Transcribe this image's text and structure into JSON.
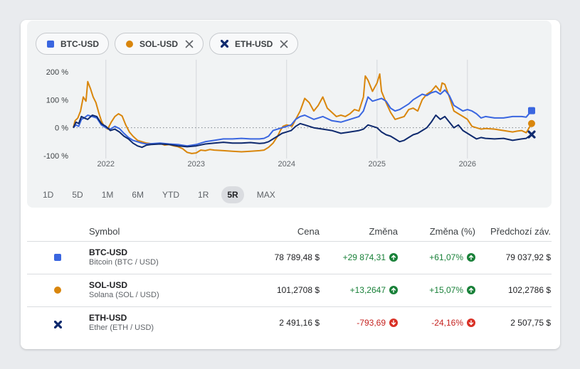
{
  "colors": {
    "btc": "#3a66e0",
    "sol": "#d9860c",
    "eth": "#0f2a6e",
    "positive": "#188038",
    "negative": "#c5221f"
  },
  "chips": [
    {
      "label": "BTC-USD",
      "icon": "square",
      "closable": false
    },
    {
      "label": "SOL-USD",
      "icon": "circle",
      "closable": true
    },
    {
      "label": "ETH-USD",
      "icon": "x-mark",
      "closable": true
    }
  ],
  "ranges": [
    "1D",
    "5D",
    "1M",
    "6M",
    "YTD",
    "1R",
    "5R",
    "MAX"
  ],
  "active_range": "5R",
  "table": {
    "headers": {
      "symbol": "Symbol",
      "price": "Cena",
      "change": "Změna",
      "change_pct": "Změna (%)",
      "prev_close": "Předchozí záv."
    },
    "rows": [
      {
        "symbol": "BTC-USD",
        "name": "Bitcoin (BTC / USD)",
        "price": "78 789,48 $",
        "change": "+29 874,31",
        "change_pct": "+61,07%",
        "prev_close": "79 037,92 $",
        "direction": "up"
      },
      {
        "symbol": "SOL-USD",
        "name": "Solana (SOL / USD)",
        "price": "101,2708 $",
        "change": "+13,2647",
        "change_pct": "+15,07%",
        "prev_close": "102,2786 $",
        "direction": "up"
      },
      {
        "symbol": "ETH-USD",
        "name": "Ether (ETH / USD)",
        "price": "2 491,16 $",
        "change": "-793,69",
        "change_pct": "-24,16%",
        "prev_close": "2 507,75 $",
        "direction": "down"
      }
    ]
  },
  "chart_data": {
    "type": "line",
    "ylim": [
      -100,
      200
    ],
    "yticks": [
      -100,
      0,
      100,
      200
    ],
    "ytick_labels": [
      "-100 %",
      "0 %",
      "100 %",
      "200 %"
    ],
    "xlim": [
      2021.64,
      2026.71
    ],
    "xticks": [
      2022,
      2023,
      2024,
      2025,
      2026
    ],
    "xtick_labels": [
      "2022",
      "2023",
      "2024",
      "2025",
      "2026"
    ],
    "xlabel": "",
    "ylabel": "",
    "grid": "vertical",
    "baseline": 0,
    "series": [
      {
        "name": "SOL-USD",
        "key": "sol",
        "marker": "circle",
        "points": [
          [
            2021.64,
            0
          ],
          [
            2021.66,
            25
          ],
          [
            2021.69,
            35
          ],
          [
            2021.72,
            60
          ],
          [
            2021.75,
            110
          ],
          [
            2021.78,
            95
          ],
          [
            2021.8,
            165
          ],
          [
            2021.83,
            140
          ],
          [
            2021.86,
            110
          ],
          [
            2021.89,
            90
          ],
          [
            2021.92,
            55
          ],
          [
            2021.95,
            25
          ],
          [
            2021.98,
            5
          ],
          [
            2022.02,
            -5
          ],
          [
            2022.06,
            20
          ],
          [
            2022.1,
            40
          ],
          [
            2022.14,
            50
          ],
          [
            2022.18,
            42
          ],
          [
            2022.22,
            10
          ],
          [
            2022.26,
            -15
          ],
          [
            2022.3,
            -30
          ],
          [
            2022.35,
            -45
          ],
          [
            2022.4,
            -50
          ],
          [
            2022.45,
            -55
          ],
          [
            2022.5,
            -57
          ],
          [
            2022.55,
            -58
          ],
          [
            2022.6,
            -56
          ],
          [
            2022.65,
            -62
          ],
          [
            2022.7,
            -60
          ],
          [
            2022.75,
            -65
          ],
          [
            2022.8,
            -68
          ],
          [
            2022.85,
            -75
          ],
          [
            2022.9,
            -88
          ],
          [
            2022.95,
            -92
          ],
          [
            2023.0,
            -90
          ],
          [
            2023.05,
            -80
          ],
          [
            2023.1,
            -82
          ],
          [
            2023.15,
            -78
          ],
          [
            2023.2,
            -80
          ],
          [
            2023.3,
            -82
          ],
          [
            2023.4,
            -84
          ],
          [
            2023.5,
            -86
          ],
          [
            2023.6,
            -84
          ],
          [
            2023.7,
            -82
          ],
          [
            2023.75,
            -80
          ],
          [
            2023.8,
            -70
          ],
          [
            2023.85,
            -55
          ],
          [
            2023.9,
            -30
          ],
          [
            2023.93,
            -10
          ],
          [
            2023.96,
            5
          ],
          [
            2024.0,
            10
          ],
          [
            2024.03,
            8
          ],
          [
            2024.06,
            5
          ],
          [
            2024.1,
            30
          ],
          [
            2024.15,
            60
          ],
          [
            2024.2,
            105
          ],
          [
            2024.25,
            90
          ],
          [
            2024.3,
            60
          ],
          [
            2024.35,
            80
          ],
          [
            2024.4,
            110
          ],
          [
            2024.45,
            70
          ],
          [
            2024.5,
            55
          ],
          [
            2024.55,
            40
          ],
          [
            2024.6,
            45
          ],
          [
            2024.65,
            40
          ],
          [
            2024.7,
            50
          ],
          [
            2024.75,
            65
          ],
          [
            2024.8,
            60
          ],
          [
            2024.85,
            110
          ],
          [
            2024.87,
            185
          ],
          [
            2024.9,
            170
          ],
          [
            2024.95,
            130
          ],
          [
            2025.0,
            160
          ],
          [
            2025.03,
            192
          ],
          [
            2025.05,
            130
          ],
          [
            2025.1,
            90
          ],
          [
            2025.15,
            55
          ],
          [
            2025.2,
            30
          ],
          [
            2025.25,
            35
          ],
          [
            2025.3,
            40
          ],
          [
            2025.35,
            65
          ],
          [
            2025.4,
            70
          ],
          [
            2025.45,
            60
          ],
          [
            2025.5,
            100
          ],
          [
            2025.55,
            120
          ],
          [
            2025.6,
            130
          ],
          [
            2025.65,
            150
          ],
          [
            2025.7,
            130
          ],
          [
            2025.72,
            160
          ],
          [
            2025.75,
            155
          ],
          [
            2025.8,
            110
          ],
          [
            2025.85,
            60
          ],
          [
            2025.9,
            50
          ],
          [
            2025.95,
            40
          ],
          [
            2026.0,
            30
          ],
          [
            2026.05,
            5
          ],
          [
            2026.1,
            0
          ],
          [
            2026.15,
            -5
          ],
          [
            2026.2,
            -3
          ],
          [
            2026.3,
            -5
          ],
          [
            2026.4,
            -10
          ],
          [
            2026.5,
            -15
          ],
          [
            2026.55,
            -12
          ],
          [
            2026.6,
            -10
          ],
          [
            2026.65,
            -18
          ],
          [
            2026.71,
            15
          ]
        ]
      },
      {
        "name": "BTC-USD",
        "key": "btc",
        "marker": "square",
        "points": [
          [
            2021.64,
            0
          ],
          [
            2021.67,
            10
          ],
          [
            2021.7,
            5
          ],
          [
            2021.73,
            30
          ],
          [
            2021.76,
            35
          ],
          [
            2021.8,
            45
          ],
          [
            2021.85,
            40
          ],
          [
            2021.9,
            35
          ],
          [
            2021.95,
            10
          ],
          [
            2022.0,
            0
          ],
          [
            2022.05,
            -5
          ],
          [
            2022.1,
            5
          ],
          [
            2022.15,
            -3
          ],
          [
            2022.2,
            -20
          ],
          [
            2022.25,
            -35
          ],
          [
            2022.3,
            -45
          ],
          [
            2022.35,
            -50
          ],
          [
            2022.4,
            -55
          ],
          [
            2022.45,
            -58
          ],
          [
            2022.5,
            -57
          ],
          [
            2022.6,
            -55
          ],
          [
            2022.7,
            -58
          ],
          [
            2022.8,
            -60
          ],
          [
            2022.9,
            -65
          ],
          [
            2023.0,
            -60
          ],
          [
            2023.1,
            -50
          ],
          [
            2023.2,
            -45
          ],
          [
            2023.3,
            -40
          ],
          [
            2023.4,
            -40
          ],
          [
            2023.5,
            -38
          ],
          [
            2023.6,
            -40
          ],
          [
            2023.7,
            -40
          ],
          [
            2023.75,
            -38
          ],
          [
            2023.8,
            -30
          ],
          [
            2023.85,
            -10
          ],
          [
            2023.9,
            -5
          ],
          [
            2023.95,
            0
          ],
          [
            2024.0,
            5
          ],
          [
            2024.05,
            10
          ],
          [
            2024.1,
            30
          ],
          [
            2024.15,
            40
          ],
          [
            2024.2,
            45
          ],
          [
            2024.3,
            30
          ],
          [
            2024.4,
            40
          ],
          [
            2024.5,
            25
          ],
          [
            2024.6,
            20
          ],
          [
            2024.7,
            30
          ],
          [
            2024.8,
            40
          ],
          [
            2024.85,
            60
          ],
          [
            2024.9,
            110
          ],
          [
            2024.95,
            95
          ],
          [
            2025.0,
            100
          ],
          [
            2025.05,
            105
          ],
          [
            2025.1,
            95
          ],
          [
            2025.15,
            70
          ],
          [
            2025.2,
            60
          ],
          [
            2025.25,
            65
          ],
          [
            2025.3,
            75
          ],
          [
            2025.35,
            85
          ],
          [
            2025.4,
            100
          ],
          [
            2025.45,
            110
          ],
          [
            2025.5,
            120
          ],
          [
            2025.55,
            115
          ],
          [
            2025.6,
            125
          ],
          [
            2025.65,
            130
          ],
          [
            2025.7,
            120
          ],
          [
            2025.75,
            135
          ],
          [
            2025.8,
            115
          ],
          [
            2025.85,
            80
          ],
          [
            2025.9,
            70
          ],
          [
            2025.95,
            60
          ],
          [
            2026.0,
            65
          ],
          [
            2026.05,
            60
          ],
          [
            2026.1,
            50
          ],
          [
            2026.15,
            35
          ],
          [
            2026.2,
            40
          ],
          [
            2026.3,
            35
          ],
          [
            2026.4,
            35
          ],
          [
            2026.5,
            40
          ],
          [
            2026.6,
            40
          ],
          [
            2026.65,
            38
          ],
          [
            2026.71,
            61
          ]
        ]
      },
      {
        "name": "ETH-USD",
        "key": "eth",
        "marker": "x-mark",
        "points": [
          [
            2021.64,
            0
          ],
          [
            2021.67,
            20
          ],
          [
            2021.7,
            15
          ],
          [
            2021.73,
            40
          ],
          [
            2021.76,
            35
          ],
          [
            2021.8,
            30
          ],
          [
            2021.85,
            45
          ],
          [
            2021.9,
            40
          ],
          [
            2021.95,
            15
          ],
          [
            2022.0,
            5
          ],
          [
            2022.05,
            -10
          ],
          [
            2022.1,
            -5
          ],
          [
            2022.15,
            -15
          ],
          [
            2022.2,
            -30
          ],
          [
            2022.25,
            -40
          ],
          [
            2022.3,
            -55
          ],
          [
            2022.35,
            -65
          ],
          [
            2022.4,
            -70
          ],
          [
            2022.45,
            -62
          ],
          [
            2022.5,
            -60
          ],
          [
            2022.6,
            -58
          ],
          [
            2022.7,
            -60
          ],
          [
            2022.8,
            -65
          ],
          [
            2022.9,
            -68
          ],
          [
            2023.0,
            -65
          ],
          [
            2023.1,
            -58
          ],
          [
            2023.2,
            -55
          ],
          [
            2023.3,
            -52
          ],
          [
            2023.4,
            -55
          ],
          [
            2023.5,
            -55
          ],
          [
            2023.6,
            -53
          ],
          [
            2023.7,
            -56
          ],
          [
            2023.75,
            -55
          ],
          [
            2023.8,
            -50
          ],
          [
            2023.85,
            -40
          ],
          [
            2023.9,
            -30
          ],
          [
            2023.95,
            -20
          ],
          [
            2024.0,
            -15
          ],
          [
            2024.05,
            -10
          ],
          [
            2024.1,
            5
          ],
          [
            2024.15,
            15
          ],
          [
            2024.2,
            10
          ],
          [
            2024.3,
            0
          ],
          [
            2024.4,
            -5
          ],
          [
            2024.5,
            -10
          ],
          [
            2024.6,
            -20
          ],
          [
            2024.7,
            -15
          ],
          [
            2024.8,
            -10
          ],
          [
            2024.85,
            -5
          ],
          [
            2024.9,
            10
          ],
          [
            2024.95,
            5
          ],
          [
            2025.0,
            0
          ],
          [
            2025.05,
            -15
          ],
          [
            2025.1,
            -25
          ],
          [
            2025.15,
            -30
          ],
          [
            2025.2,
            -40
          ],
          [
            2025.25,
            -50
          ],
          [
            2025.3,
            -45
          ],
          [
            2025.35,
            -35
          ],
          [
            2025.4,
            -25
          ],
          [
            2025.45,
            -20
          ],
          [
            2025.5,
            -10
          ],
          [
            2025.55,
            0
          ],
          [
            2025.6,
            20
          ],
          [
            2025.65,
            45
          ],
          [
            2025.7,
            30
          ],
          [
            2025.75,
            40
          ],
          [
            2025.8,
            20
          ],
          [
            2025.85,
            0
          ],
          [
            2025.9,
            10
          ],
          [
            2025.95,
            -10
          ],
          [
            2026.0,
            -20
          ],
          [
            2026.05,
            -30
          ],
          [
            2026.1,
            -40
          ],
          [
            2026.15,
            -35
          ],
          [
            2026.2,
            -38
          ],
          [
            2026.3,
            -40
          ],
          [
            2026.4,
            -38
          ],
          [
            2026.5,
            -45
          ],
          [
            2026.6,
            -40
          ],
          [
            2026.65,
            -38
          ],
          [
            2026.71,
            -24
          ]
        ]
      }
    ]
  }
}
